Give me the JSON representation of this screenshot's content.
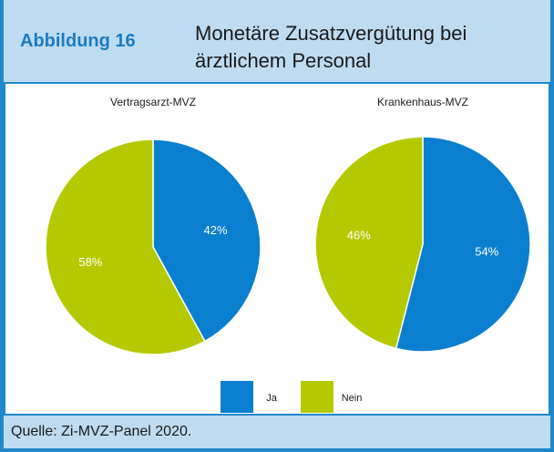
{
  "header": {
    "label": "Abbildung 16",
    "title": "Monetäre Zusatzvergütung bei ärztlichem Personal"
  },
  "chart_data": [
    {
      "type": "pie",
      "title": "Vertragsarzt-MVZ",
      "categories": [
        "Ja",
        "Nein"
      ],
      "values": [
        42,
        58
      ],
      "value_labels": [
        "42%",
        "58%"
      ],
      "colors": [
        "#0a7fcf",
        "#b5c900"
      ]
    },
    {
      "type": "pie",
      "title": "Krankenhaus-MVZ",
      "categories": [
        "Ja",
        "Nein"
      ],
      "values": [
        54,
        46
      ],
      "value_labels": [
        "54%",
        "46%"
      ],
      "colors": [
        "#0a7fcf",
        "#b5c900"
      ]
    }
  ],
  "source": "Quelle: Zi-MVZ-Panel 2020."
}
